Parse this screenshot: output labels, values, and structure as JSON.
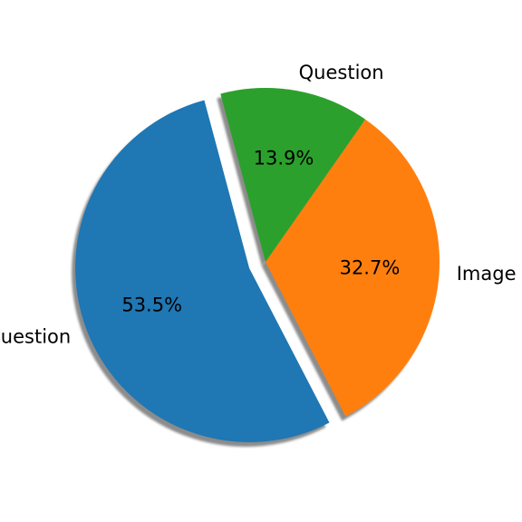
{
  "chart_data": {
    "type": "pie",
    "slices": [
      {
        "label": "Image+Question",
        "value": 53.5,
        "percent_label": "53.5%",
        "color": "#1f77b4",
        "exploded": true
      },
      {
        "label": "Image",
        "value": 32.7,
        "percent_label": "32.7%",
        "color": "#ff7f0e",
        "exploded": false
      },
      {
        "label": "Question",
        "value": 13.9,
        "percent_label": "13.9%",
        "color": "#2ca02c",
        "exploded": false
      }
    ],
    "shadow": true,
    "legend": "none"
  }
}
